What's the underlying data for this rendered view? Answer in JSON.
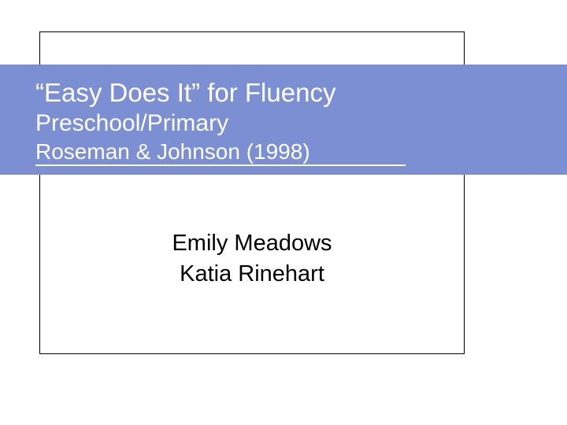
{
  "slide": {
    "title_line1": "“Easy Does It” for Fluency",
    "title_line2": "Preschool/Primary",
    "title_line3": "Roseman & Johnson (1998)",
    "author1": "Emily Meadows",
    "author2": "Katia Rinehart"
  },
  "style": {
    "banner_color": "#7c8fd3",
    "banner_text_color": "#ffffff",
    "background_color": "#ffffff",
    "frame_border_color": "#000000",
    "author_text_color": "#000000",
    "title_line1_fontsize": 33,
    "title_line2_fontsize": 30,
    "title_line3_fontsize": 28,
    "author_fontsize": 29,
    "underline_width": 470
  }
}
